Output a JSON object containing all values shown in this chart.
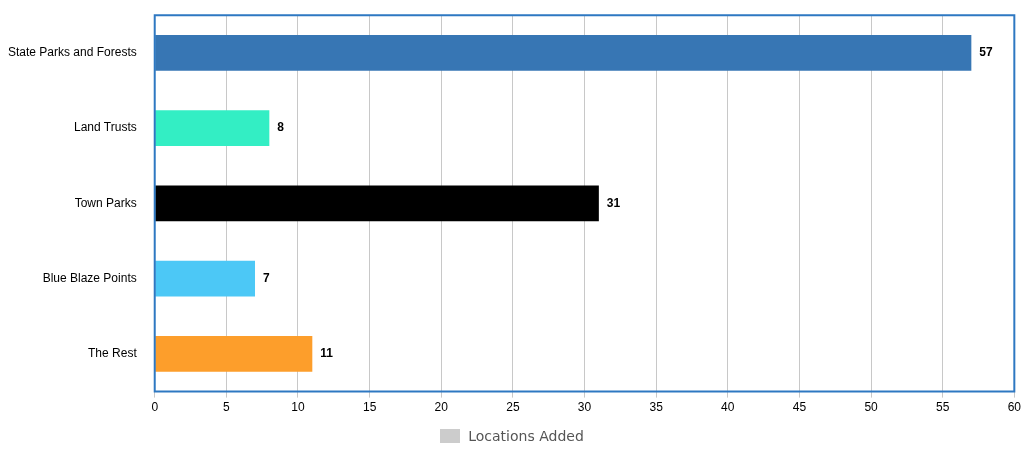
{
  "chart_data": {
    "type": "bar",
    "orientation": "horizontal",
    "categories": [
      "State Parks and Forests",
      "Land Trusts",
      "Town Parks",
      "Blue Blaze Points",
      "The Rest"
    ],
    "series": [
      {
        "name": "Locations Added",
        "color": "#cccccc",
        "colors": [
          "#3776b4",
          "#33eec4",
          "#000000",
          "#4cc8f6",
          "#fd9e2b"
        ],
        "values": [
          57,
          8,
          31,
          7,
          11
        ]
      }
    ],
    "xlim": [
      0,
      60
    ],
    "xticks": [
      0,
      5,
      10,
      15,
      20,
      25,
      30,
      35,
      40,
      45,
      50,
      55,
      60
    ],
    "grid": "x",
    "legend": "bottom",
    "data_labels": true
  }
}
